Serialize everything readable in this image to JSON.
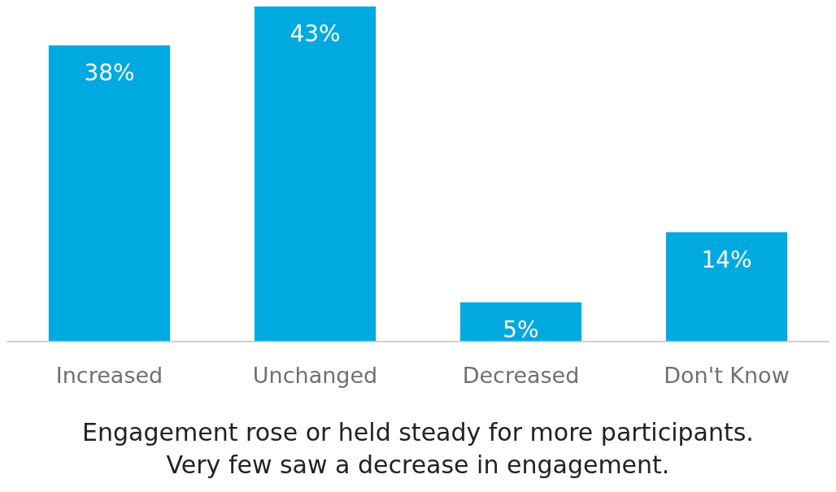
{
  "chart_data": {
    "type": "bar",
    "categories": [
      "Increased",
      "Unchanged",
      "Decreased",
      "Don't Know"
    ],
    "values": [
      38,
      43,
      5,
      14
    ],
    "value_labels": [
      "38%",
      "43%",
      "5%",
      "14%"
    ],
    "color": "#00a9e0",
    "grid": false,
    "legend": false,
    "annotations": [
      "Engagement rose or held steady for more participants.",
      "Very few saw a decrease in engagement."
    ]
  }
}
